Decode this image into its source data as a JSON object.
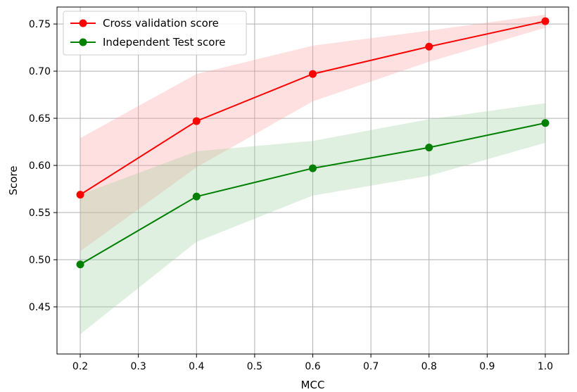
{
  "chart_data": {
    "type": "line",
    "xlabel": "MCC",
    "ylabel": "Score",
    "xlim": [
      0.16,
      1.04
    ],
    "ylim": [
      0.4,
      0.768
    ],
    "xticks": [
      0.2,
      0.3,
      0.4,
      0.5,
      0.6,
      0.7,
      0.8,
      0.9,
      1.0
    ],
    "xtick_labels": [
      "0.2",
      "0.3",
      "0.4",
      "0.5",
      "0.6",
      "0.7",
      "0.8",
      "0.9",
      "1.0"
    ],
    "yticks": [
      0.45,
      0.5,
      0.55,
      0.6,
      0.65,
      0.7,
      0.75
    ],
    "ytick_labels": [
      "0.45",
      "0.50",
      "0.55",
      "0.60",
      "0.65",
      "0.70",
      "0.75"
    ],
    "grid": true,
    "legend_position": "top-left",
    "x": [
      0.2,
      0.4,
      0.6,
      0.8,
      1.0
    ],
    "series": [
      {
        "name": "Cross validation score",
        "color": "#ff0000",
        "band_color": "#ff9999",
        "values": [
          0.569,
          0.647,
          0.697,
          0.726,
          0.753
        ],
        "lower": [
          0.509,
          0.598,
          0.668,
          0.71,
          0.746
        ],
        "upper": [
          0.629,
          0.697,
          0.727,
          0.743,
          0.76
        ]
      },
      {
        "name": "Independent Test score",
        "color": "#008000",
        "band_color": "#99cc99",
        "values": [
          0.495,
          0.567,
          0.597,
          0.619,
          0.645
        ],
        "lower": [
          0.421,
          0.519,
          0.568,
          0.589,
          0.624
        ],
        "upper": [
          0.569,
          0.615,
          0.626,
          0.649,
          0.666
        ]
      }
    ]
  }
}
